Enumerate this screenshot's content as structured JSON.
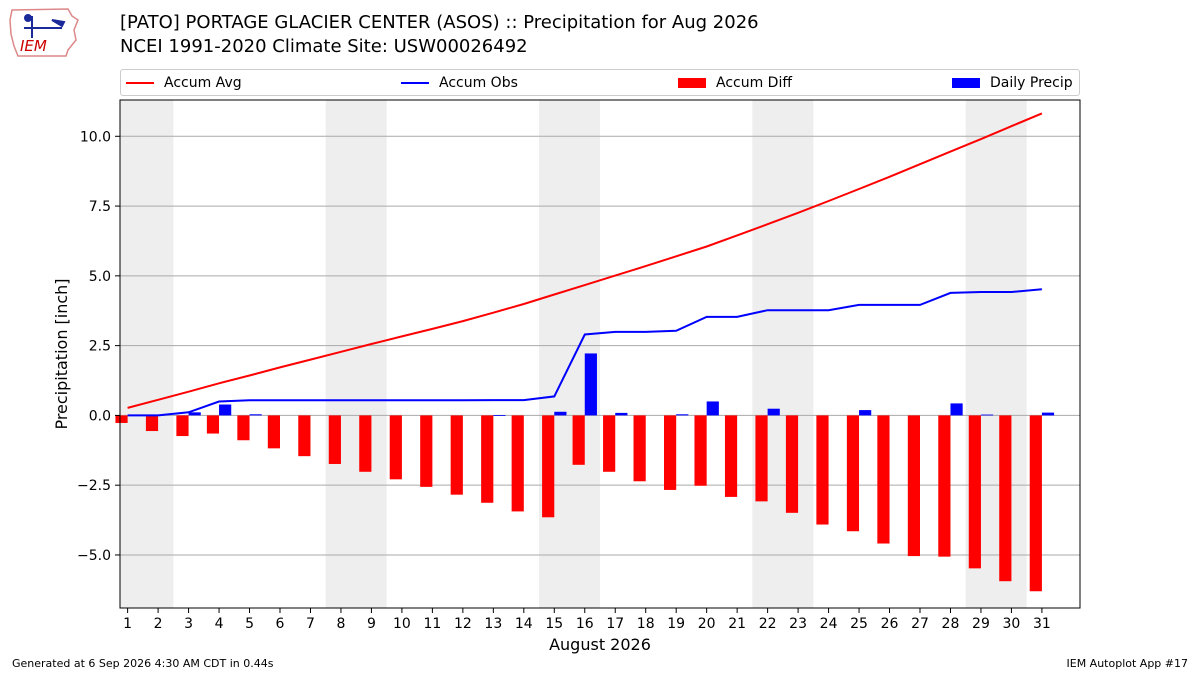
{
  "header": {
    "logo_text": "IEM",
    "title_line1": "[PATO] PORTAGE GLACIER CENTER (ASOS) :: Precipitation for Aug 2026",
    "title_line2": "NCEI 1991-2020 Climate Site: USW00026492"
  },
  "legend": {
    "accum_avg": "Accum Avg",
    "accum_obs": "Accum Obs",
    "accum_diff": "Accum Diff",
    "daily_precip": "Daily Precip"
  },
  "footer": {
    "generated": "Generated at 6 Sep 2026 4:30 AM CDT in 0.44s",
    "app": "IEM Autoplot App #17"
  },
  "colors": {
    "accum_avg": "#ff0000",
    "accum_obs": "#0000ff",
    "accum_diff": "#ff0000",
    "daily_precip": "#0000ff",
    "weekend_shade": "#eeeeee",
    "grid": "#aaaaaa"
  },
  "chart_data": {
    "type": "bar",
    "xlabel": "August 2026",
    "ylabel": "Precipitation [inch]",
    "ylim": [
      -6.9,
      11.3
    ],
    "yticks": [
      -5.0,
      -2.5,
      0.0,
      2.5,
      5.0,
      7.5,
      10.0
    ],
    "ytick_labels": [
      "−5.0",
      "−2.5",
      "0.0",
      "2.5",
      "5.0",
      "7.5",
      "10.0"
    ],
    "days": [
      1,
      2,
      3,
      4,
      5,
      6,
      7,
      8,
      9,
      10,
      11,
      12,
      13,
      14,
      15,
      16,
      17,
      18,
      19,
      20,
      21,
      22,
      23,
      24,
      25,
      26,
      27,
      28,
      29,
      30,
      31
    ],
    "shaded_day_ranges": [
      [
        1,
        2
      ],
      [
        8,
        9
      ],
      [
        15,
        16
      ],
      [
        22,
        23
      ],
      [
        29,
        30
      ]
    ],
    "grid": "horizontal",
    "legend_position": "top",
    "series": [
      {
        "name": "Accum Avg",
        "kind": "line",
        "values": [
          0.27,
          0.56,
          0.85,
          1.15,
          1.43,
          1.72,
          2.0,
          2.28,
          2.56,
          2.83,
          3.1,
          3.38,
          3.68,
          3.99,
          4.33,
          4.67,
          5.01,
          5.35,
          5.7,
          6.05,
          6.45,
          6.85,
          7.26,
          7.68,
          8.11,
          8.55,
          9.0,
          9.45,
          9.9,
          10.36,
          10.82
        ]
      },
      {
        "name": "Accum Obs",
        "kind": "line",
        "values": [
          0.0,
          0.0,
          0.11,
          0.5,
          0.54,
          0.54,
          0.54,
          0.54,
          0.54,
          0.54,
          0.54,
          0.54,
          0.55,
          0.55,
          0.68,
          2.9,
          2.99,
          2.99,
          3.03,
          3.53,
          3.53,
          3.77,
          3.77,
          3.77,
          3.96,
          3.96,
          3.96,
          4.39,
          4.42,
          4.42,
          4.52
        ]
      },
      {
        "name": "Accum Diff",
        "kind": "bar",
        "values": [
          -0.27,
          -0.56,
          -0.74,
          -0.65,
          -0.89,
          -1.18,
          -1.46,
          -1.74,
          -2.02,
          -2.29,
          -2.56,
          -2.84,
          -3.13,
          -3.44,
          -3.65,
          -1.77,
          -2.02,
          -2.36,
          -2.67,
          -2.52,
          -2.92,
          -3.08,
          -3.49,
          -3.91,
          -4.15,
          -4.59,
          -5.04,
          -5.06,
          -5.48,
          -5.94,
          -6.3
        ]
      },
      {
        "name": "Daily Precip",
        "kind": "bar",
        "values": [
          0.0,
          0.0,
          0.11,
          0.39,
          0.04,
          0.0,
          0.0,
          0.0,
          0.0,
          0.0,
          0.0,
          0.0,
          0.01,
          0.0,
          0.13,
          2.22,
          0.09,
          0.0,
          0.04,
          0.5,
          0.0,
          0.24,
          0.0,
          0.0,
          0.19,
          0.0,
          0.0,
          0.43,
          0.03,
          0.0,
          0.1
        ]
      }
    ]
  }
}
